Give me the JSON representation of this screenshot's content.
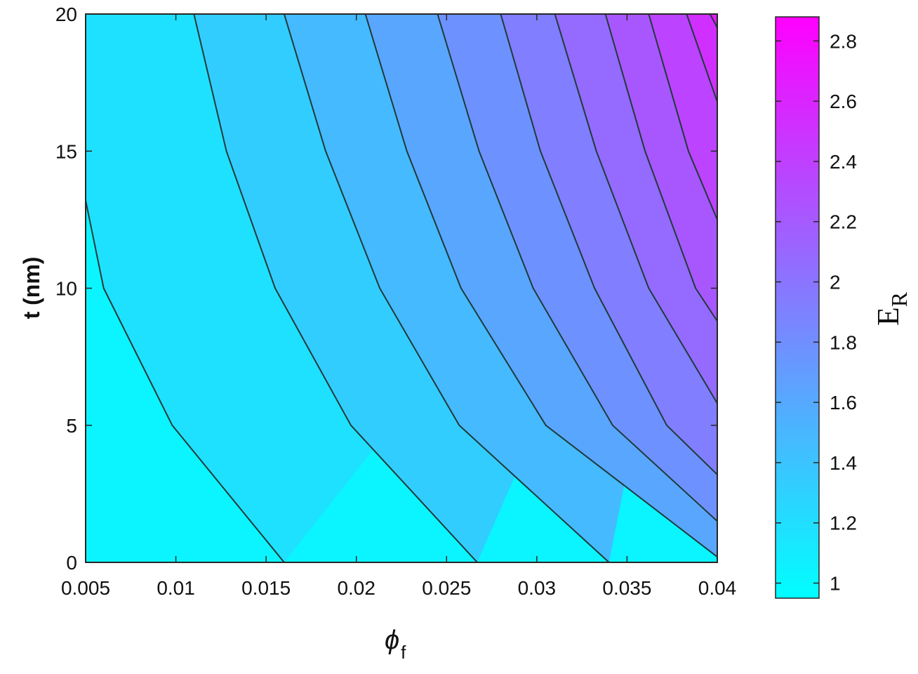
{
  "chart_data": {
    "type": "contour",
    "title": "",
    "xlabel_symbol": "ϕ",
    "xlabel_subscript": "f",
    "ylabel": "t (nm)",
    "colorbar_label": "E",
    "colorbar_label_subscript": "R",
    "xlim": [
      0.005,
      0.04
    ],
    "ylim": [
      0,
      20
    ],
    "x_ticks": [
      "0.005",
      "0.01",
      "0.015",
      "0.02",
      "0.025",
      "0.03",
      "0.035",
      "0.04"
    ],
    "y_ticks": [
      "0",
      "5",
      "10",
      "15",
      "20"
    ],
    "colorbar": {
      "range": [
        0.95,
        2.88
      ],
      "ticks": [
        "1",
        "1.2",
        "1.4",
        "1.6",
        "1.8",
        "2",
        "2.2",
        "2.4",
        "2.6",
        "2.8"
      ],
      "colormap": "cool",
      "color_low": "#00ffff",
      "color_high": "#ff00ff"
    },
    "contour_levels": [
      1.1,
      1.25,
      1.4,
      1.55,
      1.7,
      1.85,
      2.0,
      2.15,
      2.3,
      2.45,
      2.6,
      2.75
    ],
    "contours": [
      {
        "level": 1.1,
        "points": [
          [
            0.005,
            13.2
          ],
          [
            0.006,
            10
          ],
          [
            0.0098,
            5
          ],
          [
            0.016,
            0
          ]
        ]
      },
      {
        "level": 1.25,
        "points": [
          [
            0.011,
            20
          ],
          [
            0.0128,
            15
          ],
          [
            0.0155,
            10
          ],
          [
            0.0197,
            5
          ],
          [
            0.0267,
            0
          ]
        ]
      },
      {
        "level": 1.4,
        "points": [
          [
            0.016,
            20
          ],
          [
            0.0183,
            15
          ],
          [
            0.0213,
            10
          ],
          [
            0.0257,
            5
          ],
          [
            0.034,
            0
          ]
        ]
      },
      {
        "level": 1.55,
        "points": [
          [
            0.0205,
            20
          ],
          [
            0.0228,
            15
          ],
          [
            0.0258,
            10
          ],
          [
            0.0305,
            5
          ],
          [
            0.04,
            0.2
          ]
        ]
      },
      {
        "level": 1.7,
        "points": [
          [
            0.0245,
            20
          ],
          [
            0.0268,
            15
          ],
          [
            0.0298,
            10
          ],
          [
            0.0342,
            5
          ],
          [
            0.04,
            1.5
          ]
        ]
      },
      {
        "level": 1.85,
        "points": [
          [
            0.028,
            20
          ],
          [
            0.0302,
            15
          ],
          [
            0.0332,
            10
          ],
          [
            0.0372,
            5
          ],
          [
            0.04,
            3.2
          ]
        ]
      },
      {
        "level": 2.0,
        "points": [
          [
            0.031,
            20
          ],
          [
            0.0333,
            15
          ],
          [
            0.0362,
            10
          ],
          [
            0.04,
            5.8
          ]
        ]
      },
      {
        "level": 2.15,
        "points": [
          [
            0.0338,
            20
          ],
          [
            0.036,
            15
          ],
          [
            0.0388,
            10
          ],
          [
            0.04,
            8.8
          ]
        ]
      },
      {
        "level": 2.3,
        "points": [
          [
            0.0362,
            20
          ],
          [
            0.0384,
            15
          ],
          [
            0.04,
            12.5
          ]
        ]
      },
      {
        "level": 2.45,
        "points": [
          [
            0.0383,
            20
          ],
          [
            0.04,
            16.8
          ]
        ]
      },
      {
        "level": 2.6,
        "points": [
          [
            0.0396,
            20
          ],
          [
            0.04,
            19.5
          ]
        ]
      }
    ]
  }
}
